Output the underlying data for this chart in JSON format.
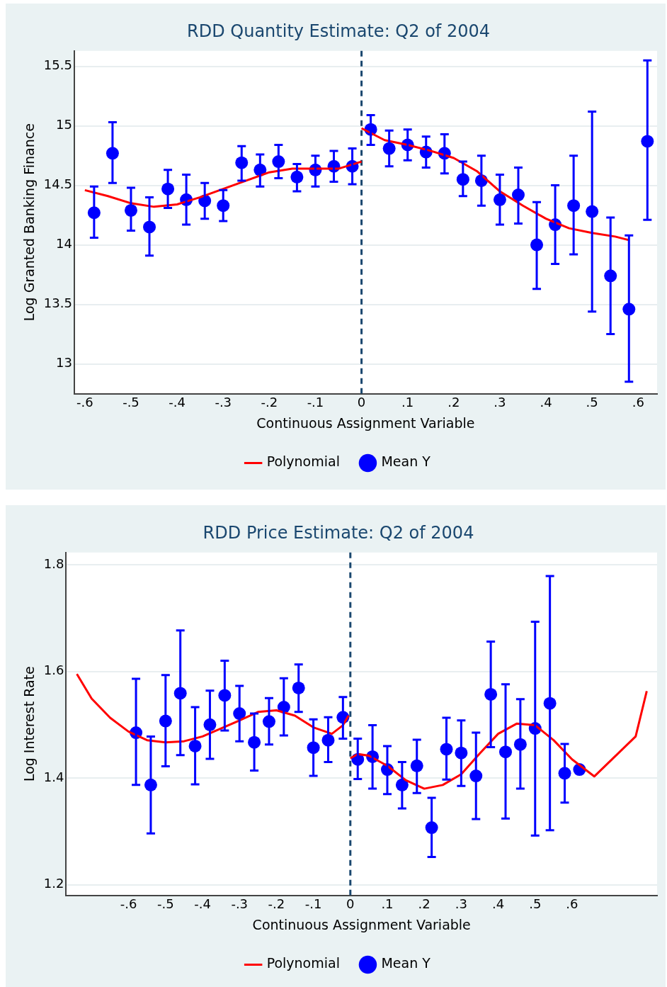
{
  "chart_data": [
    {
      "type": "scatter",
      "title": "RDD Quantity Estimate: Q2 of 2004",
      "xlabel": "Continuous Assignment Variable",
      "ylabel": "Log Granted Banking Finance",
      "xlim": [
        -0.623,
        0.641
      ],
      "ylim": [
        12.75,
        15.63
      ],
      "xticks": [
        {
          "value": -0.6,
          "label": "-.6"
        },
        {
          "value": -0.5,
          "label": "-.5"
        },
        {
          "value": -0.4,
          "label": "-.4"
        },
        {
          "value": -0.3,
          "label": "-.3"
        },
        {
          "value": -0.2,
          "label": "-.2"
        },
        {
          "value": -0.1,
          "label": "-.1"
        },
        0,
        {
          "value": 0.1,
          "label": ".1"
        },
        {
          "value": 0.2,
          "label": ".2"
        },
        {
          "value": 0.3,
          "label": ".3"
        },
        {
          "value": 0.4,
          "label": ".4"
        },
        {
          "value": 0.5,
          "label": ".5"
        },
        {
          "value": 0.6,
          "label": ".6"
        }
      ],
      "yticks": [
        13,
        13.5,
        14,
        14.5,
        15,
        15.5
      ],
      "grid": "y",
      "legend": "bottom",
      "ref_lines": [
        {
          "axis": "x",
          "value": 0,
          "color": "#1a476f",
          "line_style": "dashed"
        }
      ],
      "series": [
        {
          "name": "Mean Y",
          "type": "scatter",
          "color": "#0000ff",
          "marker": "circle",
          "x": [
            -0.58,
            -0.54,
            -0.5,
            -0.46,
            -0.42,
            -0.38,
            -0.34,
            -0.3,
            -0.26,
            -0.22,
            -0.18,
            -0.14,
            -0.1,
            -0.06,
            -0.02,
            0.02,
            0.06,
            0.1,
            0.14,
            0.18,
            0.22,
            0.26,
            0.3,
            0.34,
            0.38,
            0.42,
            0.46,
            0.5,
            0.54,
            0.58,
            0.62
          ],
          "values": [
            14.27,
            14.77,
            14.29,
            14.15,
            14.47,
            14.38,
            14.37,
            14.33,
            14.69,
            14.63,
            14.7,
            14.57,
            14.63,
            14.66,
            14.66,
            14.97,
            14.81,
            14.84,
            14.78,
            14.77,
            14.55,
            14.54,
            14.38,
            14.42,
            14.0,
            14.17,
            14.33,
            14.28,
            13.74,
            13.46,
            14.87
          ],
          "errors": [
            [
              14.06,
              14.49
            ],
            [
              14.52,
              15.03
            ],
            [
              14.12,
              14.48
            ],
            [
              13.91,
              14.4
            ],
            [
              14.31,
              14.63
            ],
            [
              14.17,
              14.59
            ],
            [
              14.22,
              14.52
            ],
            [
              14.2,
              14.46
            ],
            [
              14.54,
              14.83
            ],
            [
              14.49,
              14.76
            ],
            [
              14.56,
              14.84
            ],
            [
              14.45,
              14.68
            ],
            [
              14.49,
              14.75
            ],
            [
              14.53,
              14.79
            ],
            [
              14.51,
              14.81
            ],
            [
              14.84,
              15.09
            ],
            [
              14.66,
              14.96
            ],
            [
              14.71,
              14.97
            ],
            [
              14.65,
              14.91
            ],
            [
              14.6,
              14.93
            ],
            [
              14.41,
              14.7
            ],
            [
              14.33,
              14.75
            ],
            [
              14.17,
              14.59
            ],
            [
              14.18,
              14.65
            ],
            [
              13.63,
              14.36
            ],
            [
              13.84,
              14.5
            ],
            [
              13.92,
              14.75
            ],
            [
              13.44,
              15.12
            ],
            [
              13.25,
              14.23
            ],
            [
              12.85,
              14.08
            ],
            [
              14.21,
              15.55
            ]
          ]
        },
        {
          "name": "Polynomial",
          "type": "line",
          "color": "#ff0000",
          "marker": "none",
          "line_style": "solid",
          "x": [
            -0.6,
            -0.55,
            -0.5,
            -0.45,
            -0.4,
            -0.35,
            -0.3,
            -0.25,
            -0.2,
            -0.15,
            -0.1,
            -0.05,
            0
          ],
          "values": [
            14.46,
            14.41,
            14.35,
            14.32,
            14.34,
            14.4,
            14.47,
            14.54,
            14.61,
            14.64,
            14.64,
            14.64,
            14.7
          ]
        },
        {
          "type": "line",
          "color": "#ff0000",
          "marker": "none",
          "line_style": "solid",
          "x": [
            0,
            0.05,
            0.1,
            0.15,
            0.2,
            0.25,
            0.3,
            0.35,
            0.4,
            0.45,
            0.5,
            0.55,
            0.58
          ],
          "values": [
            14.98,
            14.88,
            14.84,
            14.79,
            14.73,
            14.62,
            14.45,
            14.33,
            14.22,
            14.14,
            14.1,
            14.07,
            14.04
          ]
        }
      ]
    },
    {
      "type": "scatter",
      "title": "RDD Price Estimate: Q2 of 2004",
      "xlabel": "Continuous Assignment Variable",
      "ylabel": "Log Interest Rate",
      "xlim": [
        -0.769,
        0.83
      ],
      "ylim": [
        1.18,
        1.823
      ],
      "xticks": [
        {
          "value": -0.6,
          "label": "-.6"
        },
        {
          "value": -0.5,
          "label": "-.5"
        },
        {
          "value": -0.4,
          "label": "-.4"
        },
        {
          "value": -0.3,
          "label": "-.3"
        },
        {
          "value": -0.2,
          "label": "-.2"
        },
        {
          "value": -0.1,
          "label": "-.1"
        },
        0,
        {
          "value": 0.1,
          "label": ".1"
        },
        {
          "value": 0.2,
          "label": ".2"
        },
        {
          "value": 0.3,
          "label": ".3"
        },
        {
          "value": 0.4,
          "label": ".4"
        },
        {
          "value": 0.5,
          "label": ".5"
        },
        {
          "value": 0.6,
          "label": ".6"
        }
      ],
      "yticks": [
        1.2,
        1.4,
        1.6,
        1.8
      ],
      "grid": "y",
      "legend": "bottom",
      "ref_lines": [
        {
          "axis": "x",
          "value": 0,
          "color": "#1a476f",
          "line_style": "dashed"
        }
      ],
      "series": [
        {
          "name": "Mean Y",
          "type": "scatter",
          "color": "#0000ff",
          "marker": "circle",
          "x": [
            -0.58,
            -0.54,
            -0.5,
            -0.46,
            -0.42,
            -0.38,
            -0.34,
            -0.3,
            -0.26,
            -0.22,
            -0.18,
            -0.14,
            -0.1,
            -0.06,
            -0.02,
            0.02,
            0.06,
            0.1,
            0.14,
            0.18,
            0.22,
            0.26,
            0.3,
            0.34,
            0.38,
            0.42,
            0.46,
            0.5,
            0.54,
            0.58,
            0.62
          ],
          "values": [
            1.485,
            1.387,
            1.507,
            1.559,
            1.46,
            1.5,
            1.555,
            1.521,
            1.467,
            1.506,
            1.533,
            1.569,
            1.457,
            1.471,
            1.514,
            1.435,
            1.44,
            1.416,
            1.387,
            1.423,
            1.307,
            1.454,
            1.447,
            1.404,
            1.557,
            1.449,
            1.463,
            1.493,
            1.54,
            1.409,
            1.416
          ],
          "errors": [
            [
              1.387,
              1.586
            ],
            [
              1.296,
              1.478
            ],
            [
              1.422,
              1.593
            ],
            [
              1.443,
              1.677
            ],
            [
              1.388,
              1.533
            ],
            [
              1.436,
              1.564
            ],
            [
              1.489,
              1.62
            ],
            [
              1.469,
              1.573
            ],
            [
              1.414,
              1.521
            ],
            [
              1.463,
              1.55
            ],
            [
              1.48,
              1.587
            ],
            [
              1.524,
              1.613
            ],
            [
              1.404,
              1.51
            ],
            [
              1.43,
              1.514
            ],
            [
              1.474,
              1.552
            ],
            [
              1.398,
              1.474
            ],
            [
              1.38,
              1.499
            ],
            [
              1.37,
              1.46
            ],
            [
              1.343,
              1.43
            ],
            [
              1.372,
              1.472
            ],
            [
              1.252,
              1.363
            ],
            [
              1.397,
              1.513
            ],
            [
              1.385,
              1.508
            ],
            [
              1.323,
              1.485
            ],
            [
              1.458,
              1.656
            ],
            [
              1.324,
              1.576
            ],
            [
              1.38,
              1.548
            ],
            [
              1.292,
              1.693
            ],
            [
              1.302,
              1.779
            ],
            [
              1.354,
              1.464
            ],
            null
          ]
        },
        {
          "name": "Polynomial",
          "type": "line",
          "color": "#ff0000",
          "marker": "none",
          "line_style": "solid",
          "x": [
            -0.74,
            -0.7,
            -0.65,
            -0.6,
            -0.55,
            -0.5,
            -0.45,
            -0.4,
            -0.35,
            -0.3,
            -0.25,
            -0.2,
            -0.15,
            -0.1,
            -0.05,
            -0.02,
            -0.005
          ],
          "values": [
            1.595,
            1.549,
            1.513,
            1.487,
            1.471,
            1.467,
            1.469,
            1.478,
            1.493,
            1.508,
            1.524,
            1.527,
            1.517,
            1.495,
            1.483,
            1.499,
            1.517
          ]
        },
        {
          "type": "line",
          "color": "#ff0000",
          "marker": "none",
          "line_style": "solid",
          "x": [
            0,
            0.02,
            0.05,
            0.1,
            0.15,
            0.2,
            0.25,
            0.3,
            0.35,
            0.4,
            0.45,
            0.5,
            0.55,
            0.6,
            0.66,
            0.772,
            0.802
          ],
          "values": [
            1.437,
            1.445,
            1.442,
            1.423,
            1.396,
            1.38,
            1.387,
            1.407,
            1.446,
            1.483,
            1.502,
            1.499,
            1.471,
            1.435,
            1.403,
            1.478,
            1.563
          ]
        }
      ]
    }
  ]
}
